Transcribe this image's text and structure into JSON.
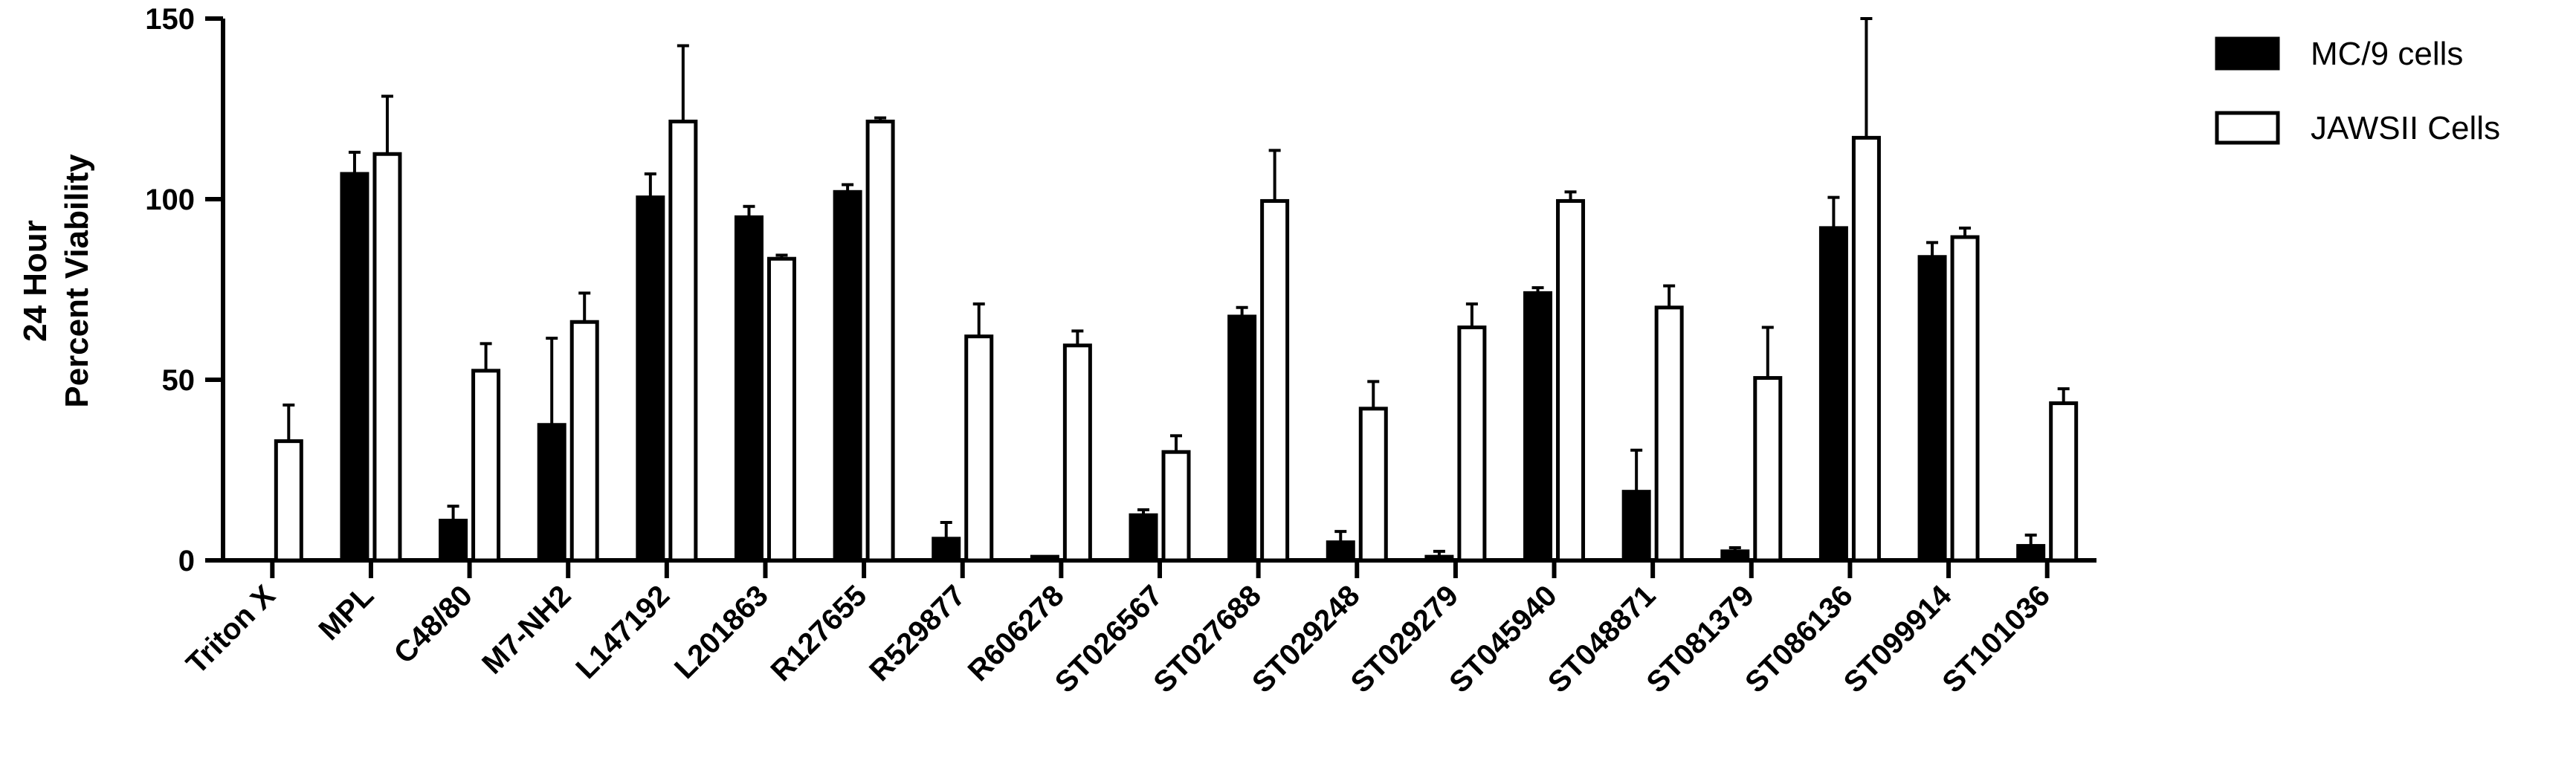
{
  "chart_data": {
    "type": "bar",
    "title": "",
    "xlabel": "",
    "ylabel_lines": [
      "24 Hour",
      "Percent Viability"
    ],
    "ylim": [
      0,
      150
    ],
    "yticks": [
      0,
      50,
      100,
      150
    ],
    "grid": false,
    "legend_position": "top-right",
    "categories": [
      "Triton X",
      "MPL",
      "C48/80",
      "M7-NH2",
      "L147192",
      "L201863",
      "R127655",
      "R529877",
      "R606278",
      "ST026567",
      "ST027688",
      "ST029248",
      "ST029279",
      "ST045940",
      "ST048871",
      "ST081379",
      "ST086136",
      "ST099914",
      "ST101036"
    ],
    "series": [
      {
        "name": "MC/9 cells",
        "fill": "#000000",
        "values": [
          0,
          107,
          11,
          37.5,
          100.5,
          95,
          102,
          6,
          1,
          12.5,
          67.5,
          5,
          1,
          74,
          19,
          2.5,
          92,
          84,
          4
        ],
        "errors": [
          0,
          6,
          4,
          24,
          6.5,
          3,
          2,
          4.5,
          0,
          1.5,
          2.5,
          3,
          1.5,
          1.5,
          11.5,
          1,
          8.5,
          4,
          3
        ]
      },
      {
        "name": "JAWSII Cells",
        "fill": "#ffffff",
        "values": [
          33,
          112.5,
          52.5,
          66,
          121.5,
          83.5,
          121.5,
          62,
          59.5,
          30,
          99.5,
          42,
          64.5,
          99.5,
          70,
          50.5,
          117,
          89.5,
          43.5
        ],
        "errors": [
          10,
          16,
          7.5,
          8,
          21,
          1,
          1,
          9,
          4,
          4.5,
          14,
          7.5,
          6.5,
          2.5,
          6,
          14,
          33,
          2.5,
          4
        ]
      }
    ]
  }
}
